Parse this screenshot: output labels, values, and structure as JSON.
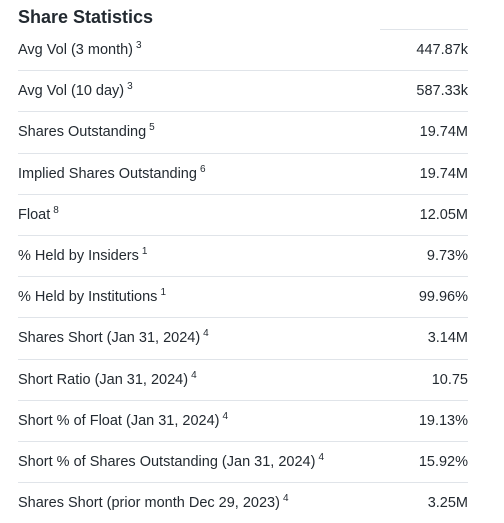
{
  "section": {
    "title": "Share Statistics"
  },
  "rows": [
    {
      "label": "Avg Vol (3 month)",
      "note": "3",
      "value": "447.87k"
    },
    {
      "label": "Avg Vol (10 day)",
      "note": "3",
      "value": "587.33k"
    },
    {
      "label": "Shares Outstanding",
      "note": "5",
      "value": "19.74M"
    },
    {
      "label": "Implied Shares Outstanding",
      "note": "6",
      "value": "19.74M"
    },
    {
      "label": "Float",
      "note": "8",
      "value": "12.05M"
    },
    {
      "label": "% Held by Insiders",
      "note": "1",
      "value": "9.73%"
    },
    {
      "label": "% Held by Institutions",
      "note": "1",
      "value": "99.96%"
    },
    {
      "label": "Shares Short (Jan 31, 2024)",
      "note": "4",
      "value": "3.14M"
    },
    {
      "label": "Short Ratio (Jan 31, 2024)",
      "note": "4",
      "value": "10.75"
    },
    {
      "label": "Short % of Float (Jan 31, 2024)",
      "note": "4",
      "value": "19.13%"
    },
    {
      "label": "Short % of Shares Outstanding (Jan 31, 2024)",
      "note": "4",
      "value": "15.92%"
    },
    {
      "label": "Shares Short (prior month Dec 29, 2023)",
      "note": "4",
      "value": "3.25M"
    }
  ]
}
